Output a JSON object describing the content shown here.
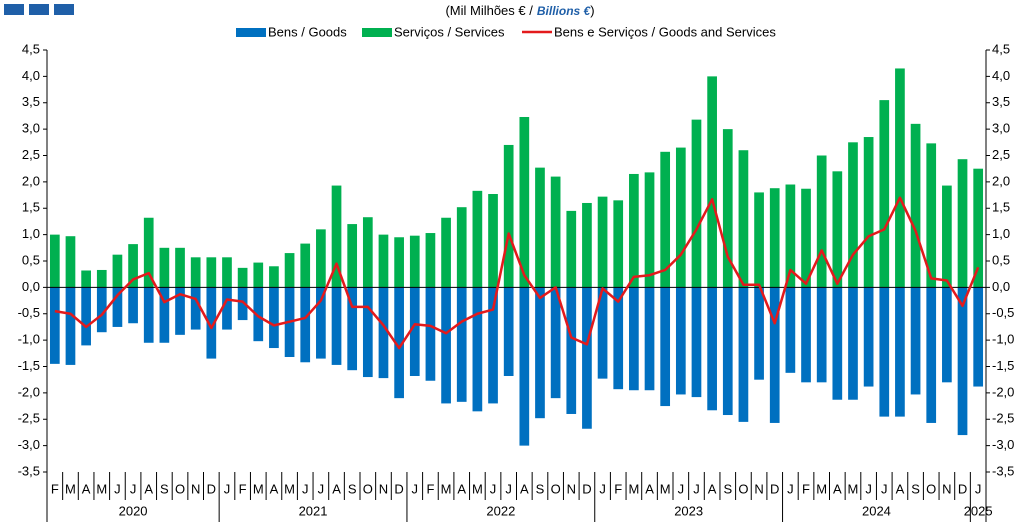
{
  "chart_data": {
    "type": "bar-line",
    "title": "(Mil Milhões  € /",
    "title_emphasis": "Billions €",
    "title_end": ")",
    "categories": [
      "F",
      "M",
      "A",
      "M",
      "J",
      "J",
      "A",
      "S",
      "O",
      "N",
      "D",
      "J",
      "F",
      "M",
      "A",
      "M",
      "J",
      "J",
      "A",
      "S",
      "O",
      "N",
      "D",
      "J",
      "F",
      "M",
      "A",
      "M",
      "J",
      "J",
      "A",
      "S",
      "O",
      "N",
      "D",
      "J",
      "F",
      "M",
      "A",
      "M",
      "J",
      "J",
      "A",
      "S",
      "O",
      "N",
      "D",
      "J",
      "F",
      "M",
      "A",
      "M",
      "J",
      "J",
      "A",
      "S",
      "O",
      "N",
      "D",
      "J"
    ],
    "years": [
      "2020",
      "2021",
      "2022",
      "2023",
      "2024",
      "2025"
    ],
    "series": [
      {
        "name": "Bens / Goods",
        "color": "#0070c0",
        "kind": "bar",
        "values": [
          -1.45,
          -1.47,
          -1.1,
          -0.85,
          -0.75,
          -0.68,
          -1.05,
          -1.05,
          -0.9,
          -0.8,
          -1.35,
          -0.8,
          -0.62,
          -1.02,
          -1.15,
          -1.32,
          -1.42,
          -1.35,
          -1.47,
          -1.57,
          -1.7,
          -1.72,
          -2.1,
          -1.68,
          -1.77,
          -2.2,
          -2.17,
          -2.35,
          -2.2,
          -1.68,
          -3.0,
          -2.48,
          -2.1,
          -2.4,
          -2.68,
          -1.73,
          -1.93,
          -1.95,
          -1.95,
          -2.25,
          -2.03,
          -2.08,
          -2.33,
          -2.42,
          -2.55,
          -1.75,
          -2.57,
          -1.62,
          -1.8,
          -1.8,
          -2.13,
          -2.13,
          -1.88,
          -2.45,
          -2.45,
          -2.03,
          -2.57,
          -1.8,
          -2.8,
          -1.88
        ]
      },
      {
        "name": "Serviços / Services",
        "color": "#00b050",
        "kind": "bar",
        "values": [
          1.0,
          0.97,
          0.32,
          0.33,
          0.62,
          0.82,
          1.32,
          0.75,
          0.75,
          0.57,
          0.57,
          0.57,
          0.37,
          0.47,
          0.4,
          0.65,
          0.83,
          1.1,
          1.93,
          1.2,
          1.33,
          1.0,
          0.95,
          0.98,
          1.03,
          1.32,
          1.52,
          1.83,
          1.77,
          2.7,
          3.23,
          2.27,
          2.1,
          1.45,
          1.6,
          1.72,
          1.65,
          2.15,
          2.18,
          2.57,
          2.65,
          3.18,
          4.0,
          3.0,
          2.6,
          1.8,
          1.88,
          1.95,
          1.87,
          2.5,
          2.2,
          2.75,
          2.85,
          3.55,
          4.15,
          3.1,
          2.73,
          1.93,
          2.43,
          2.25
        ]
      },
      {
        "name": "Bens e Serviços  / Goods and Services",
        "color": "#e31a1c",
        "kind": "line",
        "values": [
          -0.45,
          -0.5,
          -0.75,
          -0.52,
          -0.15,
          0.15,
          0.27,
          -0.28,
          -0.13,
          -0.22,
          -0.77,
          -0.23,
          -0.27,
          -0.55,
          -0.72,
          -0.65,
          -0.58,
          -0.25,
          0.45,
          -0.37,
          -0.37,
          -0.72,
          -1.15,
          -0.7,
          -0.73,
          -0.87,
          -0.65,
          -0.5,
          -0.42,
          1.02,
          0.23,
          -0.2,
          0.0,
          -0.95,
          -1.08,
          -0.02,
          -0.27,
          0.2,
          0.23,
          0.33,
          0.62,
          1.1,
          1.67,
          0.58,
          0.05,
          0.05,
          -0.68,
          0.33,
          0.07,
          0.7,
          0.07,
          0.62,
          0.97,
          1.1,
          1.7,
          1.07,
          0.17,
          0.13,
          -0.35,
          0.38
        ]
      }
    ],
    "ylim": [
      -3.5,
      4.5
    ],
    "yticks": [
      {
        "value": -3.5,
        "label": "-3,5"
      },
      {
        "value": -3,
        "label": "-3,0"
      },
      {
        "value": -2.5,
        "label": "-2,5"
      },
      {
        "value": -2,
        "label": "-2,0"
      },
      {
        "value": -1.5,
        "label": "-1,5"
      },
      {
        "value": -1,
        "label": "-1,0"
      },
      {
        "value": -0.5,
        "label": "-0,5"
      },
      {
        "value": 0,
        "label": "0,0"
      },
      {
        "value": 0.5,
        "label": "0,5"
      },
      {
        "value": 1,
        "label": "1,0"
      },
      {
        "value": 1.5,
        "label": "1,5"
      },
      {
        "value": 2,
        "label": "2,0"
      },
      {
        "value": 2.5,
        "label": "2,5"
      },
      {
        "value": 3,
        "label": "3,0"
      },
      {
        "value": 3.5,
        "label": "3,5"
      },
      {
        "value": 4,
        "label": "4,0"
      },
      {
        "value": 4.5,
        "label": "4,5"
      }
    ],
    "grid": false
  }
}
